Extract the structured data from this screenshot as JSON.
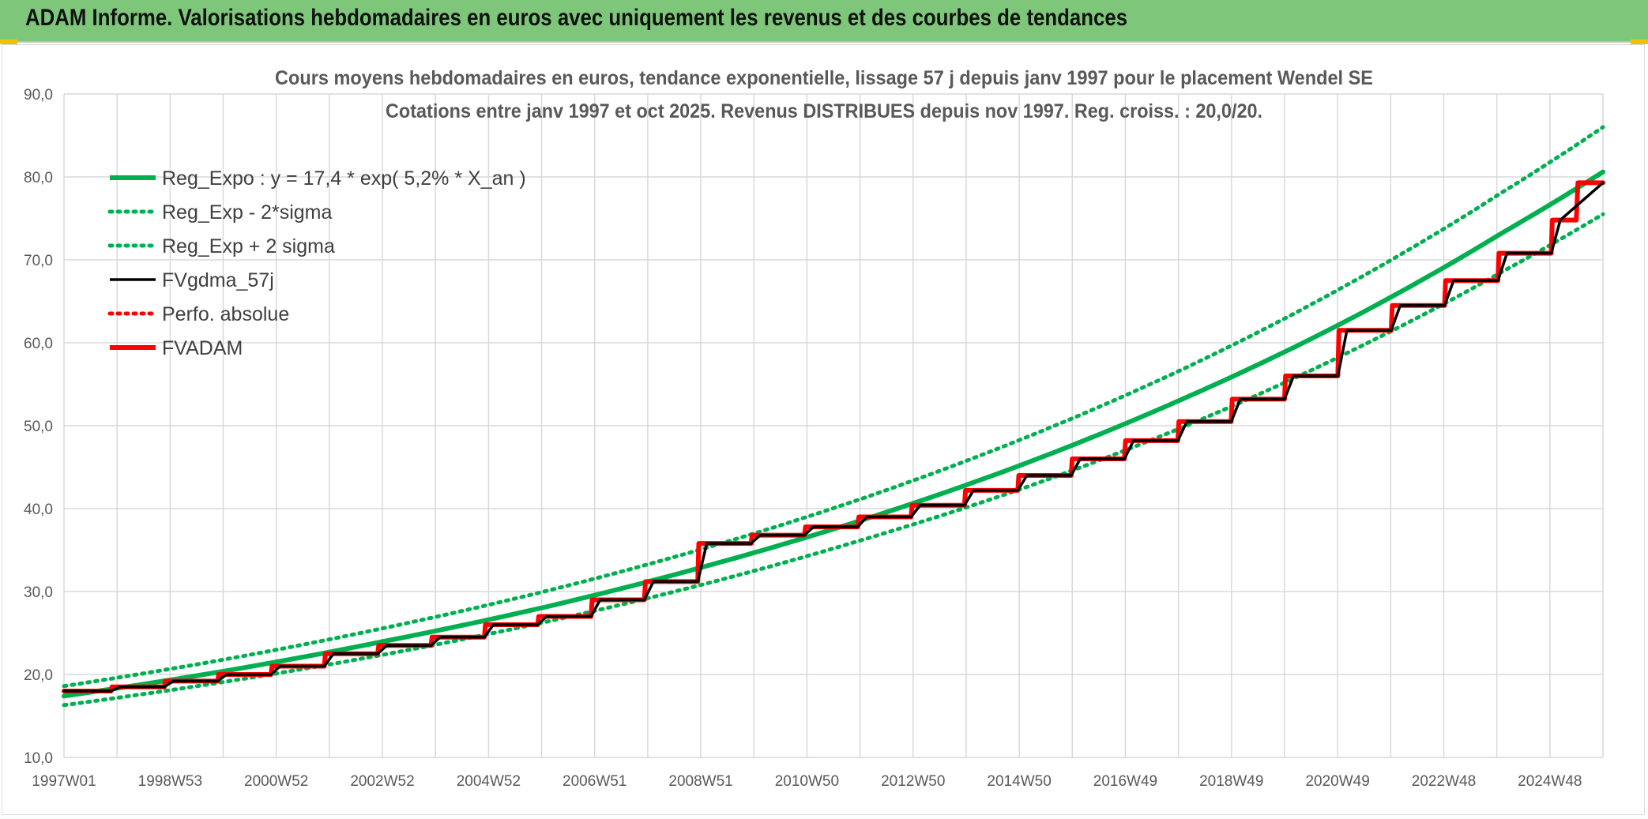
{
  "banner": {
    "title": "ADAM Informe. Valorisations hebdomadaires en euros avec uniquement les revenus et des courbes de tendances"
  },
  "colors": {
    "banner_bg": "#7dc67a",
    "green": "#00b050",
    "black": "#000000",
    "red": "#ff0000",
    "grid": "#d9d9d9",
    "text": "#595959",
    "corner_accent": "#f2c200"
  },
  "chart_data": {
    "type": "line",
    "title": "Cours moyens hebdomadaires en euros, tendance exponentielle, lissage 57 j depuis janv 1997 pour le placement Wendel SE",
    "subtitle": "Cotations entre janv 1997 et oct 2025. Revenus DISTRIBUES depuis nov 1997. Reg. croiss. : 20,0/20.",
    "xlabel": "",
    "ylabel": "",
    "x_range": [
      1997.0,
      2025.85
    ],
    "x_tick_labels": [
      "1997W01",
      "1998W53",
      "2000W52",
      "2002W52",
      "2004W52",
      "2006W51",
      "2008W51",
      "2010W50",
      "2012W50",
      "2014W50",
      "2016W49",
      "2018W49",
      "2020W49",
      "2022W48",
      "2024W48"
    ],
    "ylim": [
      10,
      90
    ],
    "y_ticks": [
      10,
      20,
      30,
      40,
      50,
      60,
      70,
      80,
      90
    ],
    "y_tick_labels": [
      "10,0",
      "20,0",
      "30,0",
      "40,0",
      "50,0",
      "60,0",
      "70,0",
      "80,0",
      "90,0"
    ],
    "grid": true,
    "legend_position": "top-left",
    "series": [
      {
        "name": "Reg_Expo : y = 17,4 * exp( 5,2% *  X_an )",
        "style": "solid-thick",
        "color": "#00b050",
        "x": [
          1997.0,
          2000.0,
          2003.0,
          2006.0,
          2009.0,
          2012.0,
          2015.0,
          2018.0,
          2021.0,
          2024.0,
          2025.85
        ],
        "values": [
          17.4,
          20.4,
          24.0,
          28.1,
          33.0,
          38.7,
          45.4,
          53.3,
          62.5,
          73.4,
          80.6
        ]
      },
      {
        "name": "Reg_Exp - 2*sigma",
        "style": "dotted",
        "color": "#00b050",
        "x": [
          1997.0,
          2000.0,
          2003.0,
          2006.0,
          2009.0,
          2012.0,
          2015.0,
          2018.0,
          2021.0,
          2024.0,
          2025.85
        ],
        "values": [
          16.3,
          19.1,
          22.4,
          26.3,
          30.9,
          36.3,
          42.5,
          49.9,
          58.6,
          68.7,
          75.5
        ]
      },
      {
        "name": "Reg_Exp + 2 sigma",
        "style": "dotted",
        "color": "#00b050",
        "x": [
          1997.0,
          2000.0,
          2003.0,
          2006.0,
          2009.0,
          2012.0,
          2015.0,
          2018.0,
          2021.0,
          2024.0,
          2025.85
        ],
        "values": [
          18.6,
          21.8,
          25.6,
          30.0,
          35.2,
          41.3,
          48.5,
          56.9,
          66.8,
          78.3,
          86.0
        ]
      },
      {
        "name": "FVgdma_57j",
        "style": "solid",
        "color": "#000000",
        "x": [
          1997.0,
          1997.88,
          1998.05,
          1998.88,
          1999.05,
          1999.88,
          2000.05,
          2000.88,
          2001.05,
          2001.88,
          2002.05,
          2002.88,
          2003.05,
          2003.88,
          2004.05,
          2004.88,
          2005.05,
          2005.88,
          2006.05,
          2006.88,
          2007.05,
          2007.88,
          2008.05,
          2008.88,
          2009.05,
          2009.88,
          2010.05,
          2010.88,
          2011.05,
          2011.88,
          2012.05,
          2012.88,
          2013.05,
          2013.88,
          2014.05,
          2014.88,
          2015.05,
          2015.88,
          2016.05,
          2016.88,
          2017.05,
          2017.88,
          2018.05,
          2018.88,
          2019.05,
          2019.88,
          2020.05,
          2020.88,
          2021.05,
          2021.88,
          2022.05,
          2022.88,
          2023.05,
          2023.88,
          2024.05,
          2024.88,
          2025.05,
          2025.85
        ],
        "values": [
          18.0,
          18.0,
          18.5,
          18.5,
          19.2,
          19.2,
          20.0,
          20.0,
          21.0,
          21.0,
          22.5,
          22.5,
          23.5,
          23.5,
          24.5,
          24.5,
          26.0,
          26.0,
          27.0,
          27.0,
          29.0,
          29.0,
          31.2,
          31.2,
          35.8,
          35.8,
          36.8,
          36.8,
          37.8,
          37.8,
          39.0,
          39.0,
          40.4,
          40.4,
          42.2,
          42.2,
          44.0,
          44.0,
          46.0,
          46.0,
          48.2,
          48.2,
          50.5,
          50.5,
          53.2,
          53.2,
          56.0,
          56.0,
          61.5,
          61.5,
          64.5,
          64.5,
          67.5,
          67.5,
          70.8,
          70.8,
          74.8,
          79.3
        ]
      },
      {
        "name": "Perfo. absolue",
        "style": "dotted",
        "color": "#ff0000",
        "x": [],
        "values": []
      },
      {
        "name": "FVADAM",
        "style": "solid-thick",
        "color": "#ff0000",
        "x": [
          1997.0,
          1997.88,
          1997.9,
          1998.88,
          1998.9,
          1999.88,
          1999.9,
          2000.88,
          2000.9,
          2001.88,
          2001.9,
          2002.88,
          2002.9,
          2003.88,
          2003.9,
          2004.88,
          2004.9,
          2005.88,
          2005.9,
          2006.88,
          2006.9,
          2007.88,
          2007.9,
          2008.88,
          2008.9,
          2009.88,
          2009.9,
          2010.88,
          2010.9,
          2011.88,
          2011.9,
          2012.88,
          2012.9,
          2013.88,
          2013.9,
          2014.88,
          2014.9,
          2015.88,
          2015.9,
          2016.88,
          2016.9,
          2017.88,
          2017.9,
          2018.88,
          2018.9,
          2019.88,
          2019.9,
          2020.88,
          2020.9,
          2021.88,
          2021.9,
          2022.88,
          2022.9,
          2023.88,
          2023.9,
          2024.88,
          2024.9,
          2025.35,
          2025.38,
          2025.85
        ],
        "values": [
          18.0,
          18.0,
          18.5,
          18.5,
          19.2,
          19.2,
          20.0,
          20.0,
          21.0,
          21.0,
          22.5,
          22.5,
          23.5,
          23.5,
          24.5,
          24.5,
          26.0,
          26.0,
          27.0,
          27.0,
          29.0,
          29.0,
          31.2,
          31.2,
          35.8,
          35.8,
          36.8,
          36.8,
          37.8,
          37.8,
          39.0,
          39.0,
          40.4,
          40.4,
          42.2,
          42.2,
          44.0,
          44.0,
          46.0,
          46.0,
          48.2,
          48.2,
          50.5,
          50.5,
          53.2,
          53.2,
          56.0,
          56.0,
          61.5,
          61.5,
          64.5,
          64.5,
          67.5,
          67.5,
          70.8,
          70.8,
          74.8,
          74.8,
          79.3,
          79.3
        ]
      }
    ]
  }
}
